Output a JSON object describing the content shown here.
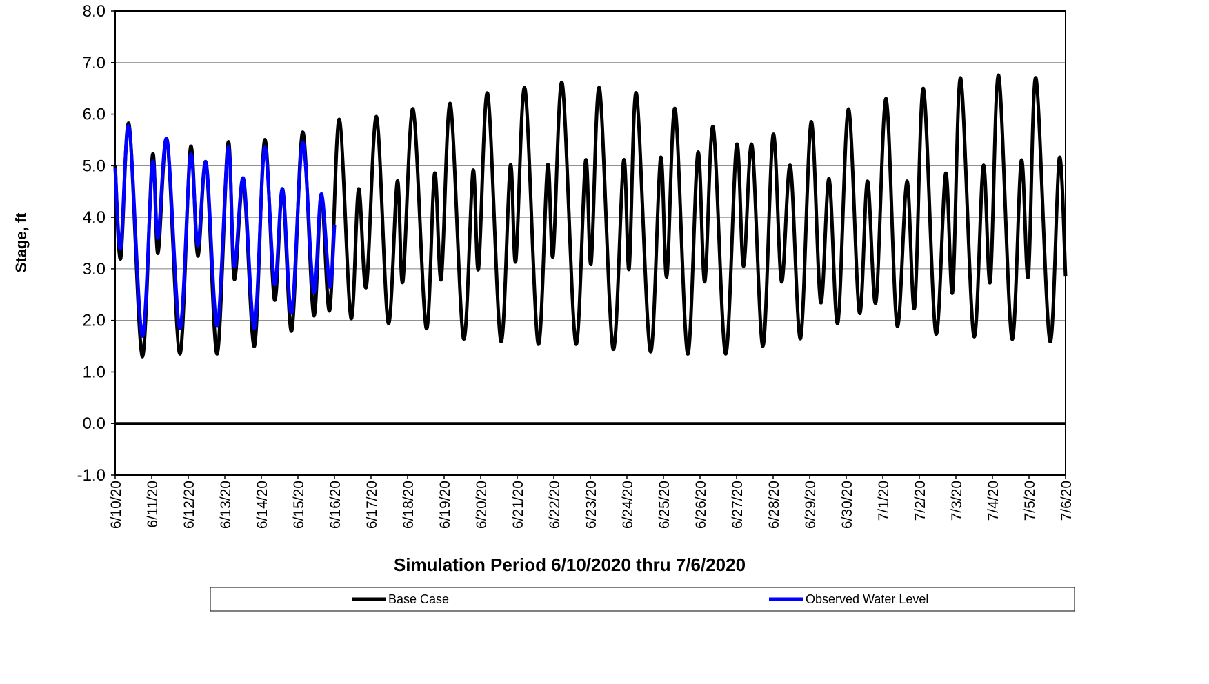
{
  "chart_data": {
    "type": "line",
    "x_label": "Simulation Period 6/10/2020 thru 7/6/2020",
    "y_label": "Stage, ft",
    "xlim": [
      0,
      26
    ],
    "xticks": [
      {
        "value": 0,
        "label": "6/10/20"
      },
      {
        "value": 1,
        "label": "6/11/20"
      },
      {
        "value": 2,
        "label": "6/12/20"
      },
      {
        "value": 3,
        "label": "6/13/20"
      },
      {
        "value": 4,
        "label": "6/14/20"
      },
      {
        "value": 5,
        "label": "6/15/20"
      },
      {
        "value": 6,
        "label": "6/16/20"
      },
      {
        "value": 7,
        "label": "6/17/20"
      },
      {
        "value": 8,
        "label": "6/18/20"
      },
      {
        "value": 9,
        "label": "6/19/20"
      },
      {
        "value": 10,
        "label": "6/20/20"
      },
      {
        "value": 11,
        "label": "6/21/20"
      },
      {
        "value": 12,
        "label": "6/22/20"
      },
      {
        "value": 13,
        "label": "6/23/20"
      },
      {
        "value": 14,
        "label": "6/24/20"
      },
      {
        "value": 15,
        "label": "6/25/20"
      },
      {
        "value": 16,
        "label": "6/26/20"
      },
      {
        "value": 17,
        "label": "6/27/20"
      },
      {
        "value": 18,
        "label": "6/28/20"
      },
      {
        "value": 19,
        "label": "6/29/20"
      },
      {
        "value": 20,
        "label": "6/30/20"
      },
      {
        "value": 21,
        "label": "7/1/20"
      },
      {
        "value": 22,
        "label": "7/2/20"
      },
      {
        "value": 23,
        "label": "7/3/20"
      },
      {
        "value": 24,
        "label": "7/4/20"
      },
      {
        "value": 25,
        "label": "7/5/20"
      },
      {
        "value": 26,
        "label": "7/6/20"
      }
    ],
    "ylim": [
      -1,
      8
    ],
    "yticks": [
      {
        "value": -1,
        "label": "-1.0"
      },
      {
        "value": 0,
        "label": "0.0"
      },
      {
        "value": 1,
        "label": "1.0"
      },
      {
        "value": 2,
        "label": "2.0"
      },
      {
        "value": 3,
        "label": "3.0"
      },
      {
        "value": 4,
        "label": "4.0"
      },
      {
        "value": 5,
        "label": "5.0"
      },
      {
        "value": 6,
        "label": "6.0"
      },
      {
        "value": 7,
        "label": "7.0"
      },
      {
        "value": 8,
        "label": "8.0"
      }
    ],
    "grid": true,
    "legend": "bottom",
    "series": [
      {
        "name": "Base Case",
        "color": "#000000",
        "x": [
          0,
          0.15,
          0.38,
          0.74,
          1.02,
          1.17,
          1.42,
          1.77,
          2.06,
          2.26,
          2.49,
          2.79,
          3.09,
          3.26,
          3.51,
          3.81,
          4.09,
          4.36,
          4.58,
          4.83,
          5.13,
          5.43,
          5.64,
          5.87,
          6.13,
          6.45,
          6.66,
          6.87,
          7.15,
          7.47,
          7.72,
          7.87,
          8.15,
          8.51,
          8.74,
          8.92,
          9.17,
          9.53,
          9.79,
          9.94,
          10.19,
          10.55,
          10.81,
          10.96,
          11.21,
          11.57,
          11.83,
          11.98,
          12.23,
          12.6,
          12.87,
          13.02,
          13.25,
          13.62,
          13.91,
          14.06,
          14.26,
          14.64,
          14.92,
          15.09,
          15.32,
          15.66,
          15.94,
          16.13,
          16.36,
          16.7,
          17.0,
          17.19,
          17.42,
          17.72,
          18.0,
          18.23,
          18.47,
          18.75,
          19.04,
          19.3,
          19.53,
          19.77,
          20.06,
          20.36,
          20.58,
          20.81,
          21.09,
          21.39,
          21.66,
          21.87,
          22.11,
          22.45,
          22.72,
          22.91,
          23.13,
          23.49,
          23.75,
          23.94,
          24.17,
          24.53,
          24.79,
          24.98,
          25.19,
          25.57,
          25.83,
          26.0
        ],
        "values": [
          5.0,
          3.2,
          5.8,
          1.3,
          5.2,
          3.3,
          5.5,
          1.35,
          5.35,
          3.25,
          5.05,
          1.35,
          5.45,
          2.8,
          4.7,
          1.5,
          5.5,
          2.4,
          4.55,
          1.8,
          5.65,
          2.1,
          4.45,
          2.2,
          5.9,
          2.05,
          4.55,
          2.65,
          5.95,
          1.95,
          4.7,
          2.75,
          6.1,
          1.85,
          4.85,
          2.8,
          6.2,
          1.65,
          4.9,
          3.0,
          6.4,
          1.6,
          5.0,
          3.15,
          6.5,
          1.55,
          5.0,
          3.25,
          6.6,
          1.55,
          5.1,
          3.1,
          6.5,
          1.45,
          5.1,
          3.0,
          6.4,
          1.4,
          5.15,
          2.85,
          6.1,
          1.35,
          5.25,
          2.75,
          5.75,
          1.35,
          5.4,
          3.05,
          5.4,
          1.5,
          5.6,
          2.75,
          5.0,
          1.65,
          5.85,
          2.35,
          4.75,
          1.95,
          6.1,
          2.15,
          4.7,
          2.35,
          6.3,
          1.9,
          4.7,
          2.25,
          6.5,
          1.75,
          4.85,
          2.55,
          6.7,
          1.7,
          5.0,
          2.75,
          6.75,
          1.65,
          5.1,
          2.85,
          6.7,
          1.6,
          5.15,
          2.85
        ]
      },
      {
        "name": "Observed Water Level",
        "color": "#0000ff",
        "x": [
          0,
          0.15,
          0.38,
          0.74,
          1.02,
          1.17,
          1.42,
          1.77,
          2.06,
          2.26,
          2.49,
          2.79,
          3.09,
          3.26,
          3.51,
          3.81,
          4.09,
          4.36,
          4.58,
          4.83,
          5.13,
          5.43,
          5.64,
          5.87,
          6.0
        ],
        "values": [
          4.95,
          3.4,
          5.75,
          1.7,
          5.05,
          3.6,
          5.5,
          1.85,
          5.2,
          3.45,
          5.05,
          1.9,
          5.35,
          3.05,
          4.75,
          1.85,
          5.35,
          2.7,
          4.55,
          2.15,
          5.45,
          2.55,
          4.45,
          2.65,
          3.85
        ]
      }
    ]
  }
}
